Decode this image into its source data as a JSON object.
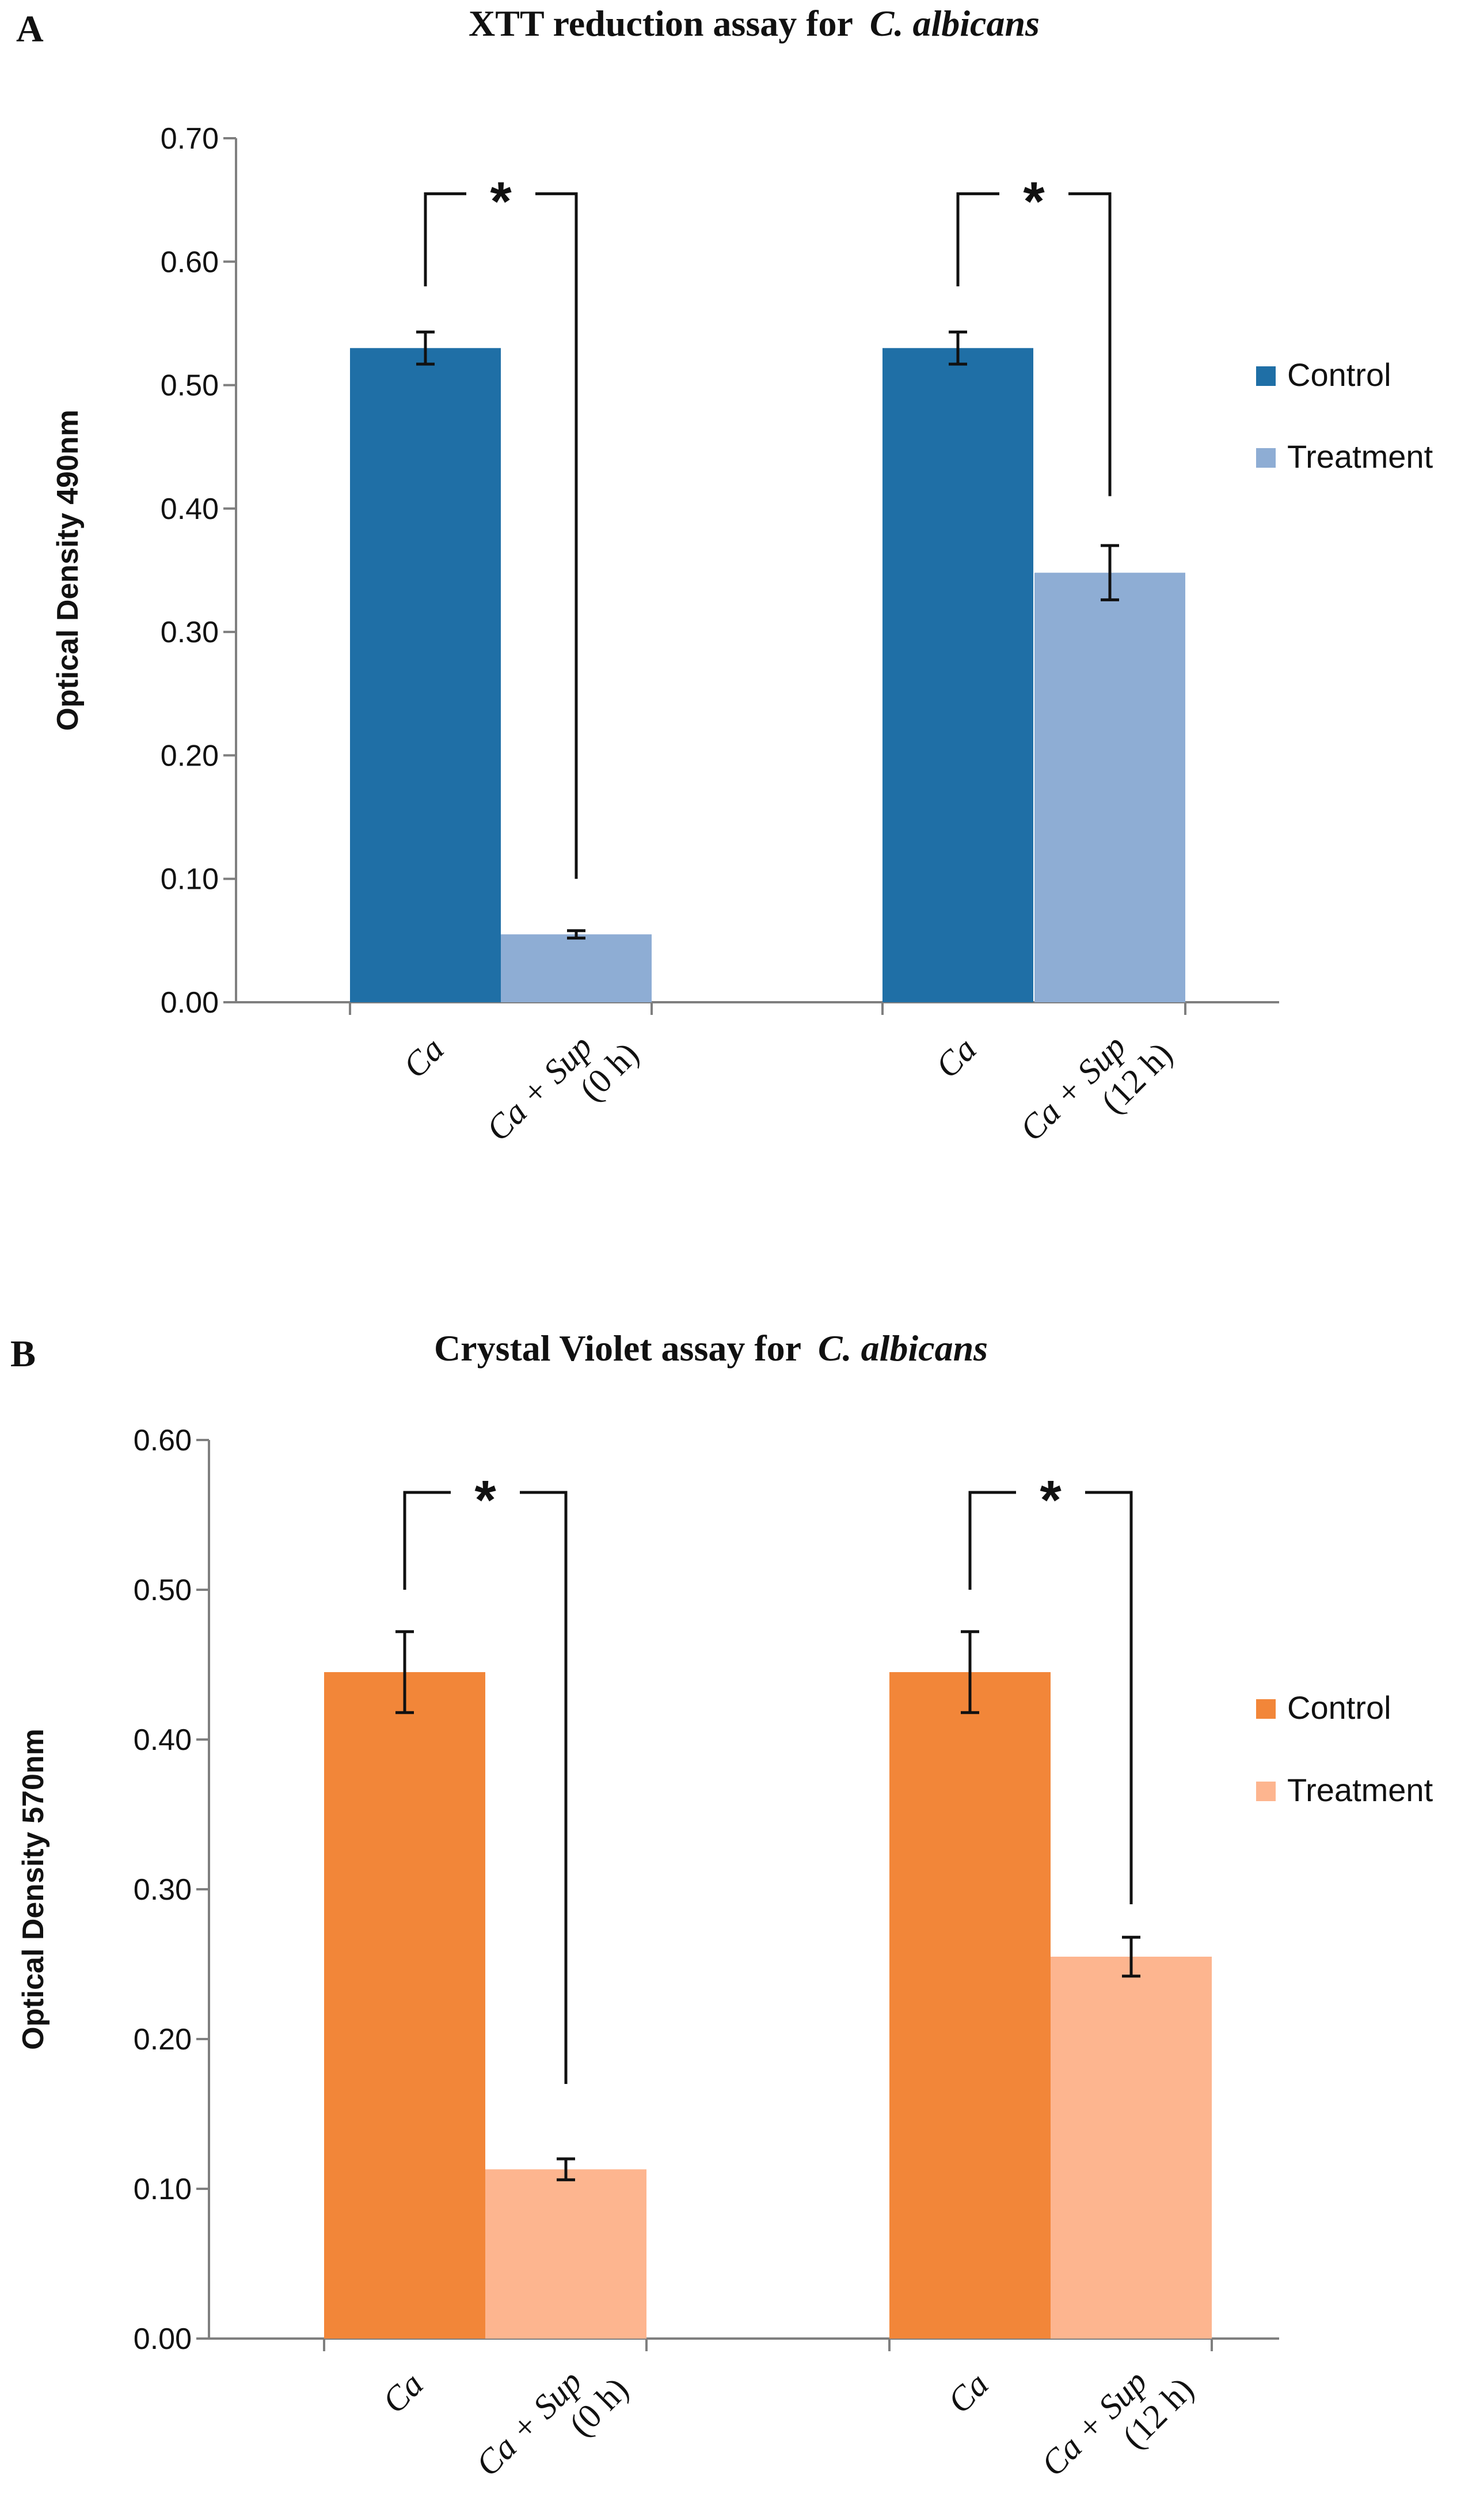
{
  "chart_data": [
    {
      "type": "bar",
      "panel": "A",
      "title": "XTT  reduction assay for",
      "title_italic": "C. albicans",
      "xlabel": "",
      "ylabel": "Optical Density 490nm",
      "ylim": [
        0,
        0.7
      ],
      "yticks": [
        "0.00",
        "0.10",
        "0.20",
        "0.30",
        "0.40",
        "0.50",
        "0.60",
        "0.70"
      ],
      "grid": false,
      "legend_position": "right",
      "bars": [
        {
          "label_line1": "Ca",
          "label_line2": "",
          "series": "Control",
          "value": 0.53,
          "err": 0.013
        },
        {
          "label_line1": "Ca + Sup",
          "label_line2": "(0 h)",
          "series": "Treatment",
          "value": 0.055,
          "err": 0.003
        },
        {
          "label_line1": "Ca",
          "label_line2": "",
          "series": "Control",
          "value": 0.53,
          "err": 0.013
        },
        {
          "label_line1": "Ca + Sup",
          "label_line2": "(12 h)",
          "series": "Treatment",
          "value": 0.348,
          "err": 0.022
        }
      ],
      "series": [
        {
          "name": "Control",
          "color": "#1f6fa6"
        },
        {
          "name": "Treatment",
          "color": "#8eadd4"
        }
      ],
      "significance": [
        {
          "marker": "*",
          "from_bar": 0,
          "to_bar": 1,
          "level": 0.655,
          "left_end": 0.58,
          "right_end": 0.1
        },
        {
          "marker": "*",
          "from_bar": 2,
          "to_bar": 3,
          "level": 0.655,
          "left_end": 0.58,
          "right_end": 0.41
        }
      ]
    },
    {
      "type": "bar",
      "panel": "B",
      "title": "Crystal Violet assay for",
      "title_italic": "C. albicans",
      "xlabel": "",
      "ylabel": "Optical Density 570nm",
      "ylim": [
        0,
        0.6
      ],
      "yticks": [
        "0.00",
        "0.10",
        "0.20",
        "0.30",
        "0.40",
        "0.50",
        "0.60"
      ],
      "grid": false,
      "legend_position": "right",
      "bars": [
        {
          "label_line1": "Ca",
          "label_line2": "",
          "series": "Control",
          "value": 0.445,
          "err": 0.027
        },
        {
          "label_line1": "Ca + Sup",
          "label_line2": "(0 h)",
          "series": "Treatment",
          "value": 0.113,
          "err": 0.007
        },
        {
          "label_line1": "Ca",
          "label_line2": "",
          "series": "Control",
          "value": 0.445,
          "err": 0.027
        },
        {
          "label_line1": "Ca + Sup",
          "label_line2": "(12 h)",
          "series": "Treatment",
          "value": 0.255,
          "err": 0.013
        }
      ],
      "series": [
        {
          "name": "Control",
          "color": "#f28639"
        },
        {
          "name": "Treatment",
          "color": "#fdb58f"
        }
      ],
      "significance": [
        {
          "marker": "*",
          "from_bar": 0,
          "to_bar": 1,
          "level": 0.565,
          "left_end": 0.5,
          "right_end": 0.17
        },
        {
          "marker": "*",
          "from_bar": 2,
          "to_bar": 3,
          "level": 0.565,
          "left_end": 0.5,
          "right_end": 0.29
        }
      ]
    }
  ]
}
